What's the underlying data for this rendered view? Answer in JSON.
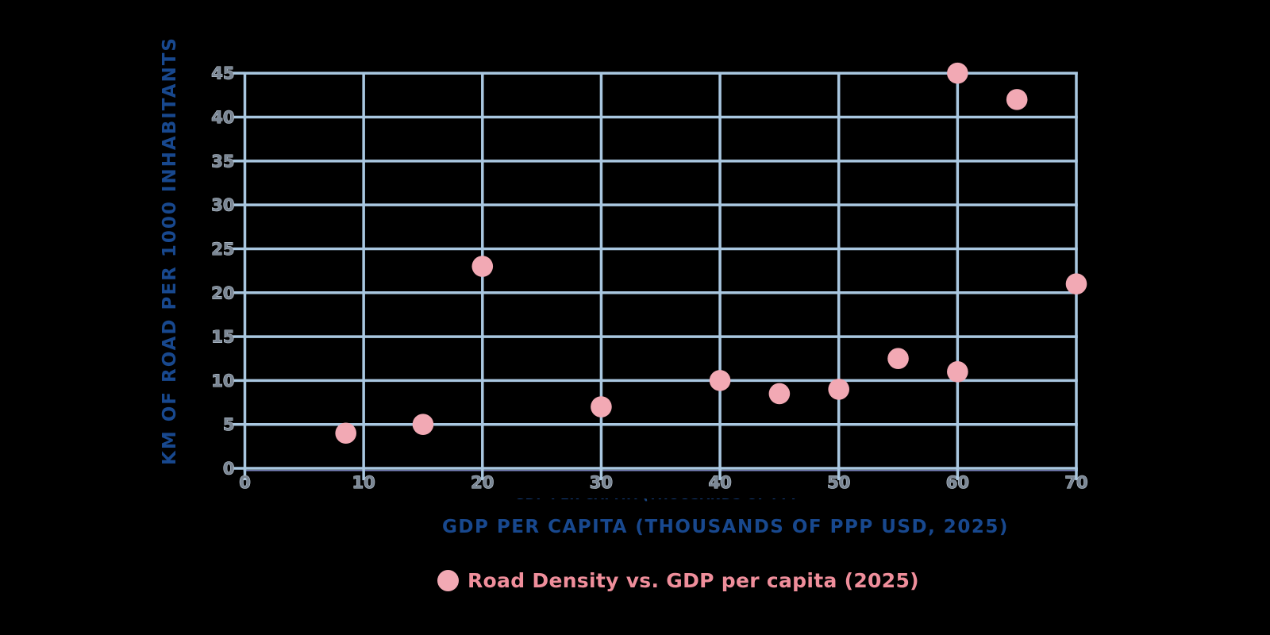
{
  "chart_data": {
    "type": "scatter",
    "xlabel": "GDP PER CAPITA (THOUSANDS OF PPP USD, 2025)",
    "ylabel": "KM OF ROAD PER 1000 INHABITANTS",
    "legend": "Road Density vs. GDP per capita (2025)",
    "legend_position": "bottom",
    "grid": true,
    "xlim": [
      0,
      70
    ],
    "ylim": [
      0,
      45
    ],
    "x_tick_step": 10,
    "y_tick_step": 5,
    "x_tick_labels": [
      "0",
      "10",
      "20",
      "30",
      "40",
      "50",
      "60",
      "70"
    ],
    "y_tick_labels": [
      "0",
      "5",
      "10",
      "15",
      "20",
      "25",
      "30",
      "35",
      "40",
      "45"
    ],
    "series": [
      {
        "name": "Road Density vs. GDP per capita (2025)",
        "points": [
          {
            "x": 8.5,
            "y": 4
          },
          {
            "x": 15,
            "y": 5
          },
          {
            "x": 20,
            "y": 23
          },
          {
            "x": 30,
            "y": 7
          },
          {
            "x": 40,
            "y": 10
          },
          {
            "x": 45,
            "y": 8.5
          },
          {
            "x": 50,
            "y": 9
          },
          {
            "x": 55,
            "y": 12.5
          },
          {
            "x": 60,
            "y": 11
          },
          {
            "x": 60,
            "y": 45
          },
          {
            "x": 65,
            "y": 42
          },
          {
            "x": 70,
            "y": 21
          }
        ]
      }
    ]
  },
  "colors": {
    "background": "#000000",
    "grid": "#a9c7e0",
    "point_fill": "#f2a9b4",
    "axis_title": "#18488e",
    "tick_label": "#7b8795",
    "tick_label_halo": "#ccd8e4",
    "legend_text": "#ef8e9b",
    "axis_shadow": "#8b96d8"
  }
}
